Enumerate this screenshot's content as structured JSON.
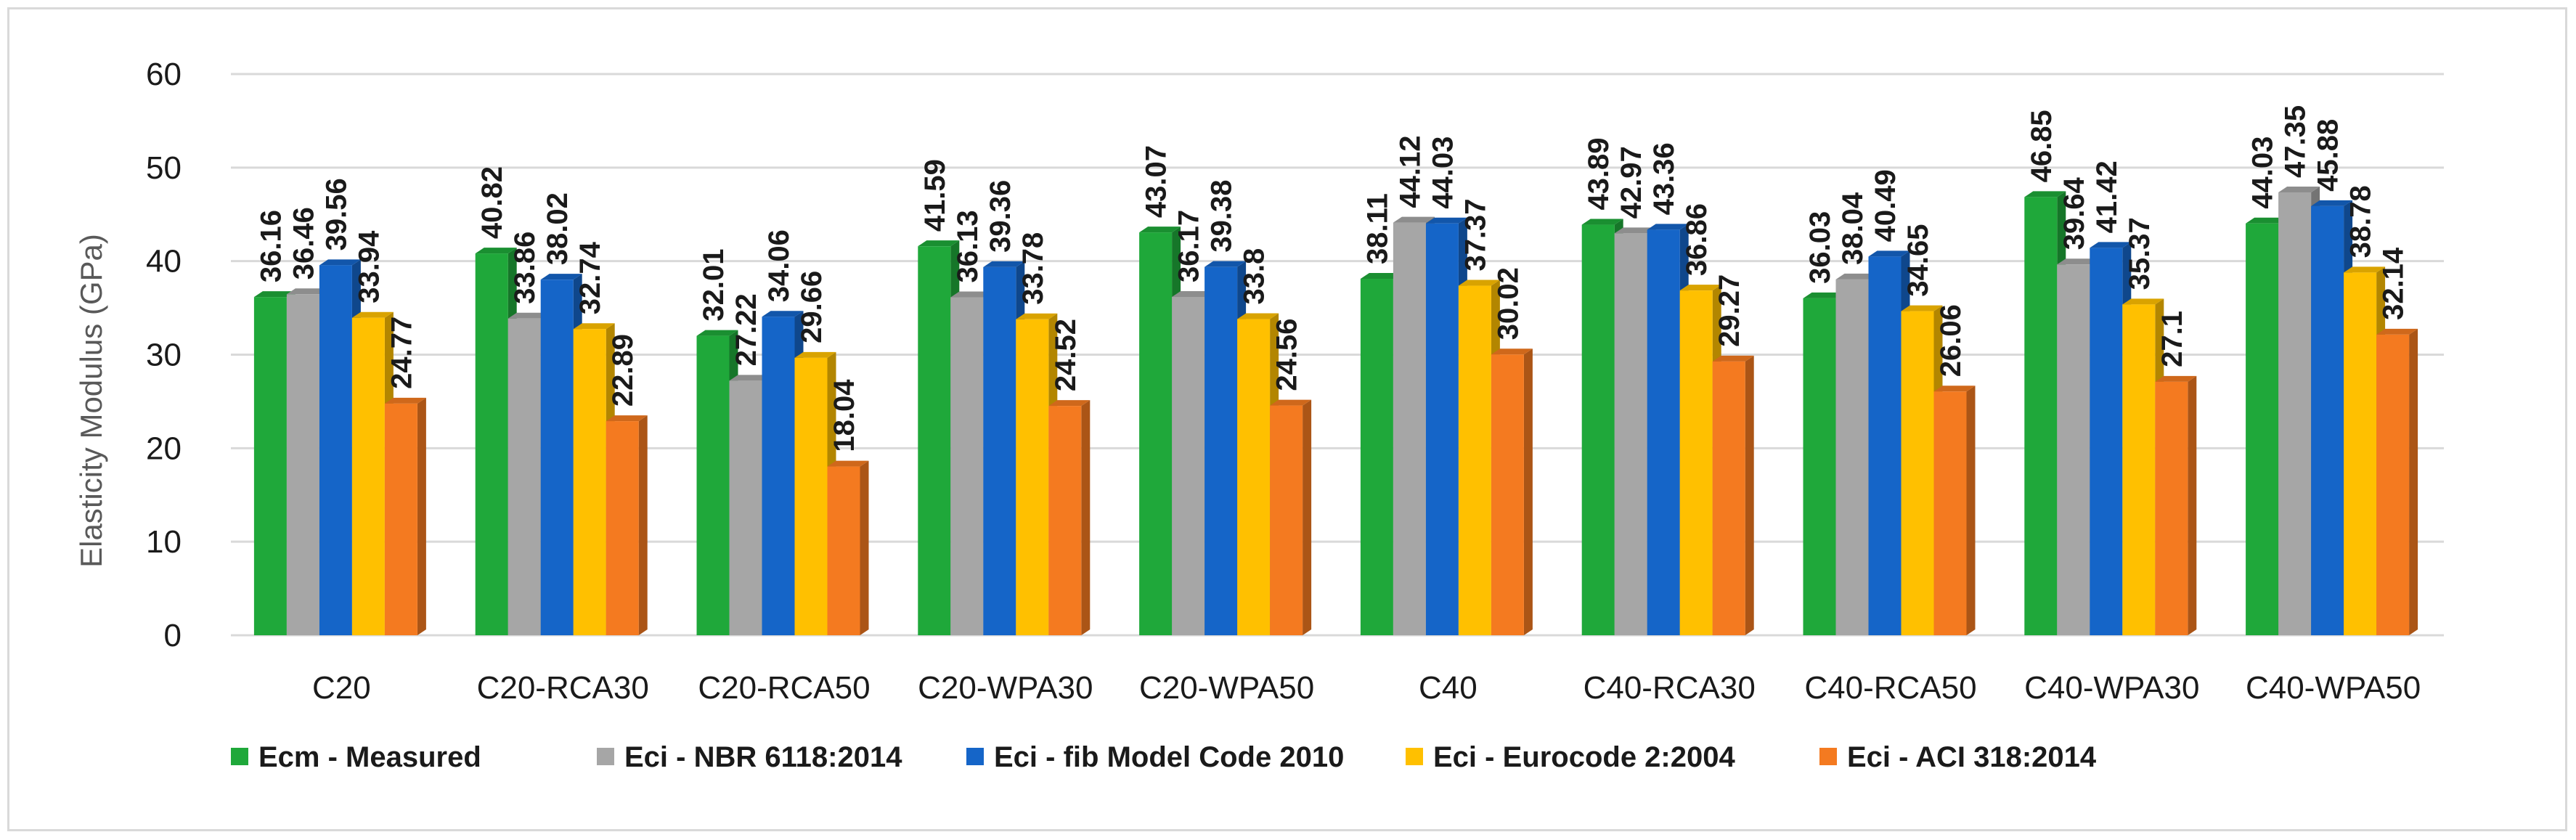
{
  "chart_data": {
    "type": "bar",
    "title": "",
    "xlabel": "",
    "ylabel": "Elasticity Modulus (GPa)",
    "ylim": [
      0,
      60
    ],
    "yticks": [
      0,
      10,
      20,
      30,
      40,
      50,
      60
    ],
    "grid": true,
    "legend_position": "bottom",
    "categories": [
      "C20",
      "C20-RCA30",
      "C20-RCA50",
      "C20-WPA30",
      "C20-WPA50",
      "C40",
      "C40-RCA30",
      "C40-RCA50",
      "C40-WPA30",
      "C40-WPA50"
    ],
    "series": [
      {
        "name": "Ecm - Measured",
        "color": "#1fa83a",
        "values": [
          36.16,
          40.82,
          32.01,
          41.59,
          43.07,
          38.11,
          43.89,
          36.03,
          46.85,
          44.03
        ]
      },
      {
        "name": "Eci - NBR 6118:2014",
        "color": "#a6a6a6",
        "values": [
          36.46,
          33.86,
          27.22,
          36.13,
          36.17,
          44.12,
          42.97,
          38.04,
          39.64,
          47.35
        ]
      },
      {
        "name": "Eci - fib Model Code 2010",
        "color": "#1565c8",
        "values": [
          39.56,
          38.02,
          34.06,
          39.36,
          39.38,
          44.03,
          43.36,
          40.49,
          41.42,
          45.88
        ]
      },
      {
        "name": "Eci - Eurocode 2:2004",
        "color": "#ffc000",
        "values": [
          33.94,
          32.74,
          29.66,
          33.78,
          33.8,
          37.37,
          36.86,
          34.65,
          35.37,
          38.78
        ]
      },
      {
        "name": "Eci - ACI 318:2014",
        "color": "#f47a20",
        "values": [
          24.77,
          22.89,
          18.04,
          24.52,
          24.56,
          30.02,
          29.27,
          26.06,
          27.1,
          32.14
        ]
      }
    ]
  }
}
